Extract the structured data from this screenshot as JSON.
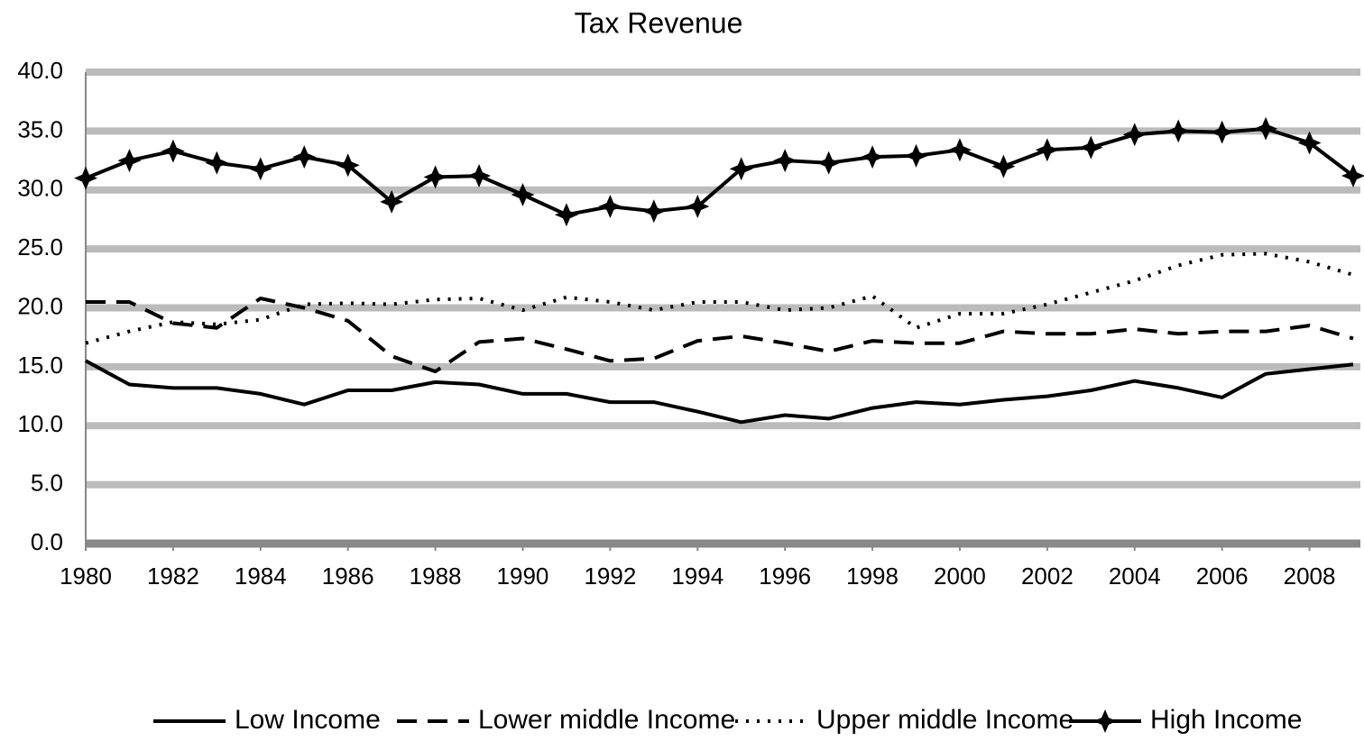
{
  "chart_data": {
    "type": "line",
    "title": "Tax Revenue",
    "x": [
      1980,
      1981,
      1982,
      1983,
      1984,
      1985,
      1986,
      1987,
      1988,
      1989,
      1990,
      1991,
      1992,
      1993,
      1994,
      1995,
      1996,
      1997,
      1998,
      1999,
      2000,
      2001,
      2002,
      2003,
      2004,
      2005,
      2006,
      2007,
      2008,
      2009
    ],
    "series": [
      {
        "name": "Low Income",
        "color": "#000000",
        "dash": "solid",
        "marker": "none",
        "values": [
          15.5,
          13.5,
          13.2,
          13.2,
          12.7,
          11.8,
          13.0,
          13.0,
          13.7,
          13.5,
          12.7,
          12.7,
          12.0,
          12.0,
          11.2,
          10.3,
          10.9,
          10.6,
          11.5,
          12.0,
          11.8,
          12.2,
          12.5,
          13.0,
          13.8,
          13.2,
          12.4,
          14.4,
          14.8,
          15.2
        ]
      },
      {
        "name": "Lower middle Income",
        "color": "#000000",
        "dash": "dashed",
        "marker": "none",
        "values": [
          20.5,
          20.5,
          18.7,
          18.3,
          20.8,
          20.0,
          18.9,
          15.9,
          14.6,
          17.1,
          17.4,
          16.5,
          15.5,
          15.7,
          17.2,
          17.6,
          17.0,
          16.3,
          17.2,
          17.0,
          17.0,
          18.0,
          17.8,
          17.8,
          18.2,
          17.8,
          18.0,
          18.0,
          18.5,
          17.4
        ]
      },
      {
        "name": "Upper middle Income",
        "color": "#000000",
        "dash": "dotted",
        "marker": "none",
        "values": [
          17.0,
          18.0,
          18.8,
          18.6,
          19.0,
          20.3,
          20.4,
          20.3,
          20.7,
          20.8,
          19.8,
          20.9,
          20.5,
          19.8,
          20.5,
          20.5,
          19.8,
          20.0,
          21.0,
          18.3,
          19.5,
          19.5,
          20.3,
          21.3,
          22.3,
          23.6,
          24.5,
          24.6,
          23.9,
          22.8
        ]
      },
      {
        "name": "High Income",
        "color": "#000000",
        "dash": "solid",
        "marker": "star",
        "values": [
          31.0,
          32.5,
          33.3,
          32.3,
          31.8,
          32.8,
          32.1,
          29.0,
          31.1,
          31.2,
          29.6,
          27.9,
          28.6,
          28.2,
          28.6,
          31.8,
          32.5,
          32.3,
          32.8,
          32.9,
          33.4,
          32.0,
          33.4,
          33.6,
          34.7,
          35.0,
          34.9,
          35.2,
          34.0,
          31.2
        ]
      }
    ],
    "xlim": [
      1980,
      2009
    ],
    "xticks": [
      1980,
      1982,
      1984,
      1986,
      1988,
      1990,
      1992,
      1994,
      1996,
      1998,
      2000,
      2002,
      2004,
      2006,
      2008
    ],
    "ylim": [
      0,
      40
    ],
    "yticks": [
      {
        "value": 0,
        "label": "0.0"
      },
      {
        "value": 5,
        "label": "5.0"
      },
      {
        "value": 10,
        "label": "10.0"
      },
      {
        "value": 15,
        "label": "15.0"
      },
      {
        "value": 20,
        "label": "20.0"
      },
      {
        "value": 25,
        "label": "25.0"
      },
      {
        "value": 30,
        "label": "30.0"
      },
      {
        "value": 35,
        "label": "35.0"
      },
      {
        "value": 40,
        "label": "40.0"
      }
    ],
    "grid": true,
    "legend": "bottom"
  }
}
